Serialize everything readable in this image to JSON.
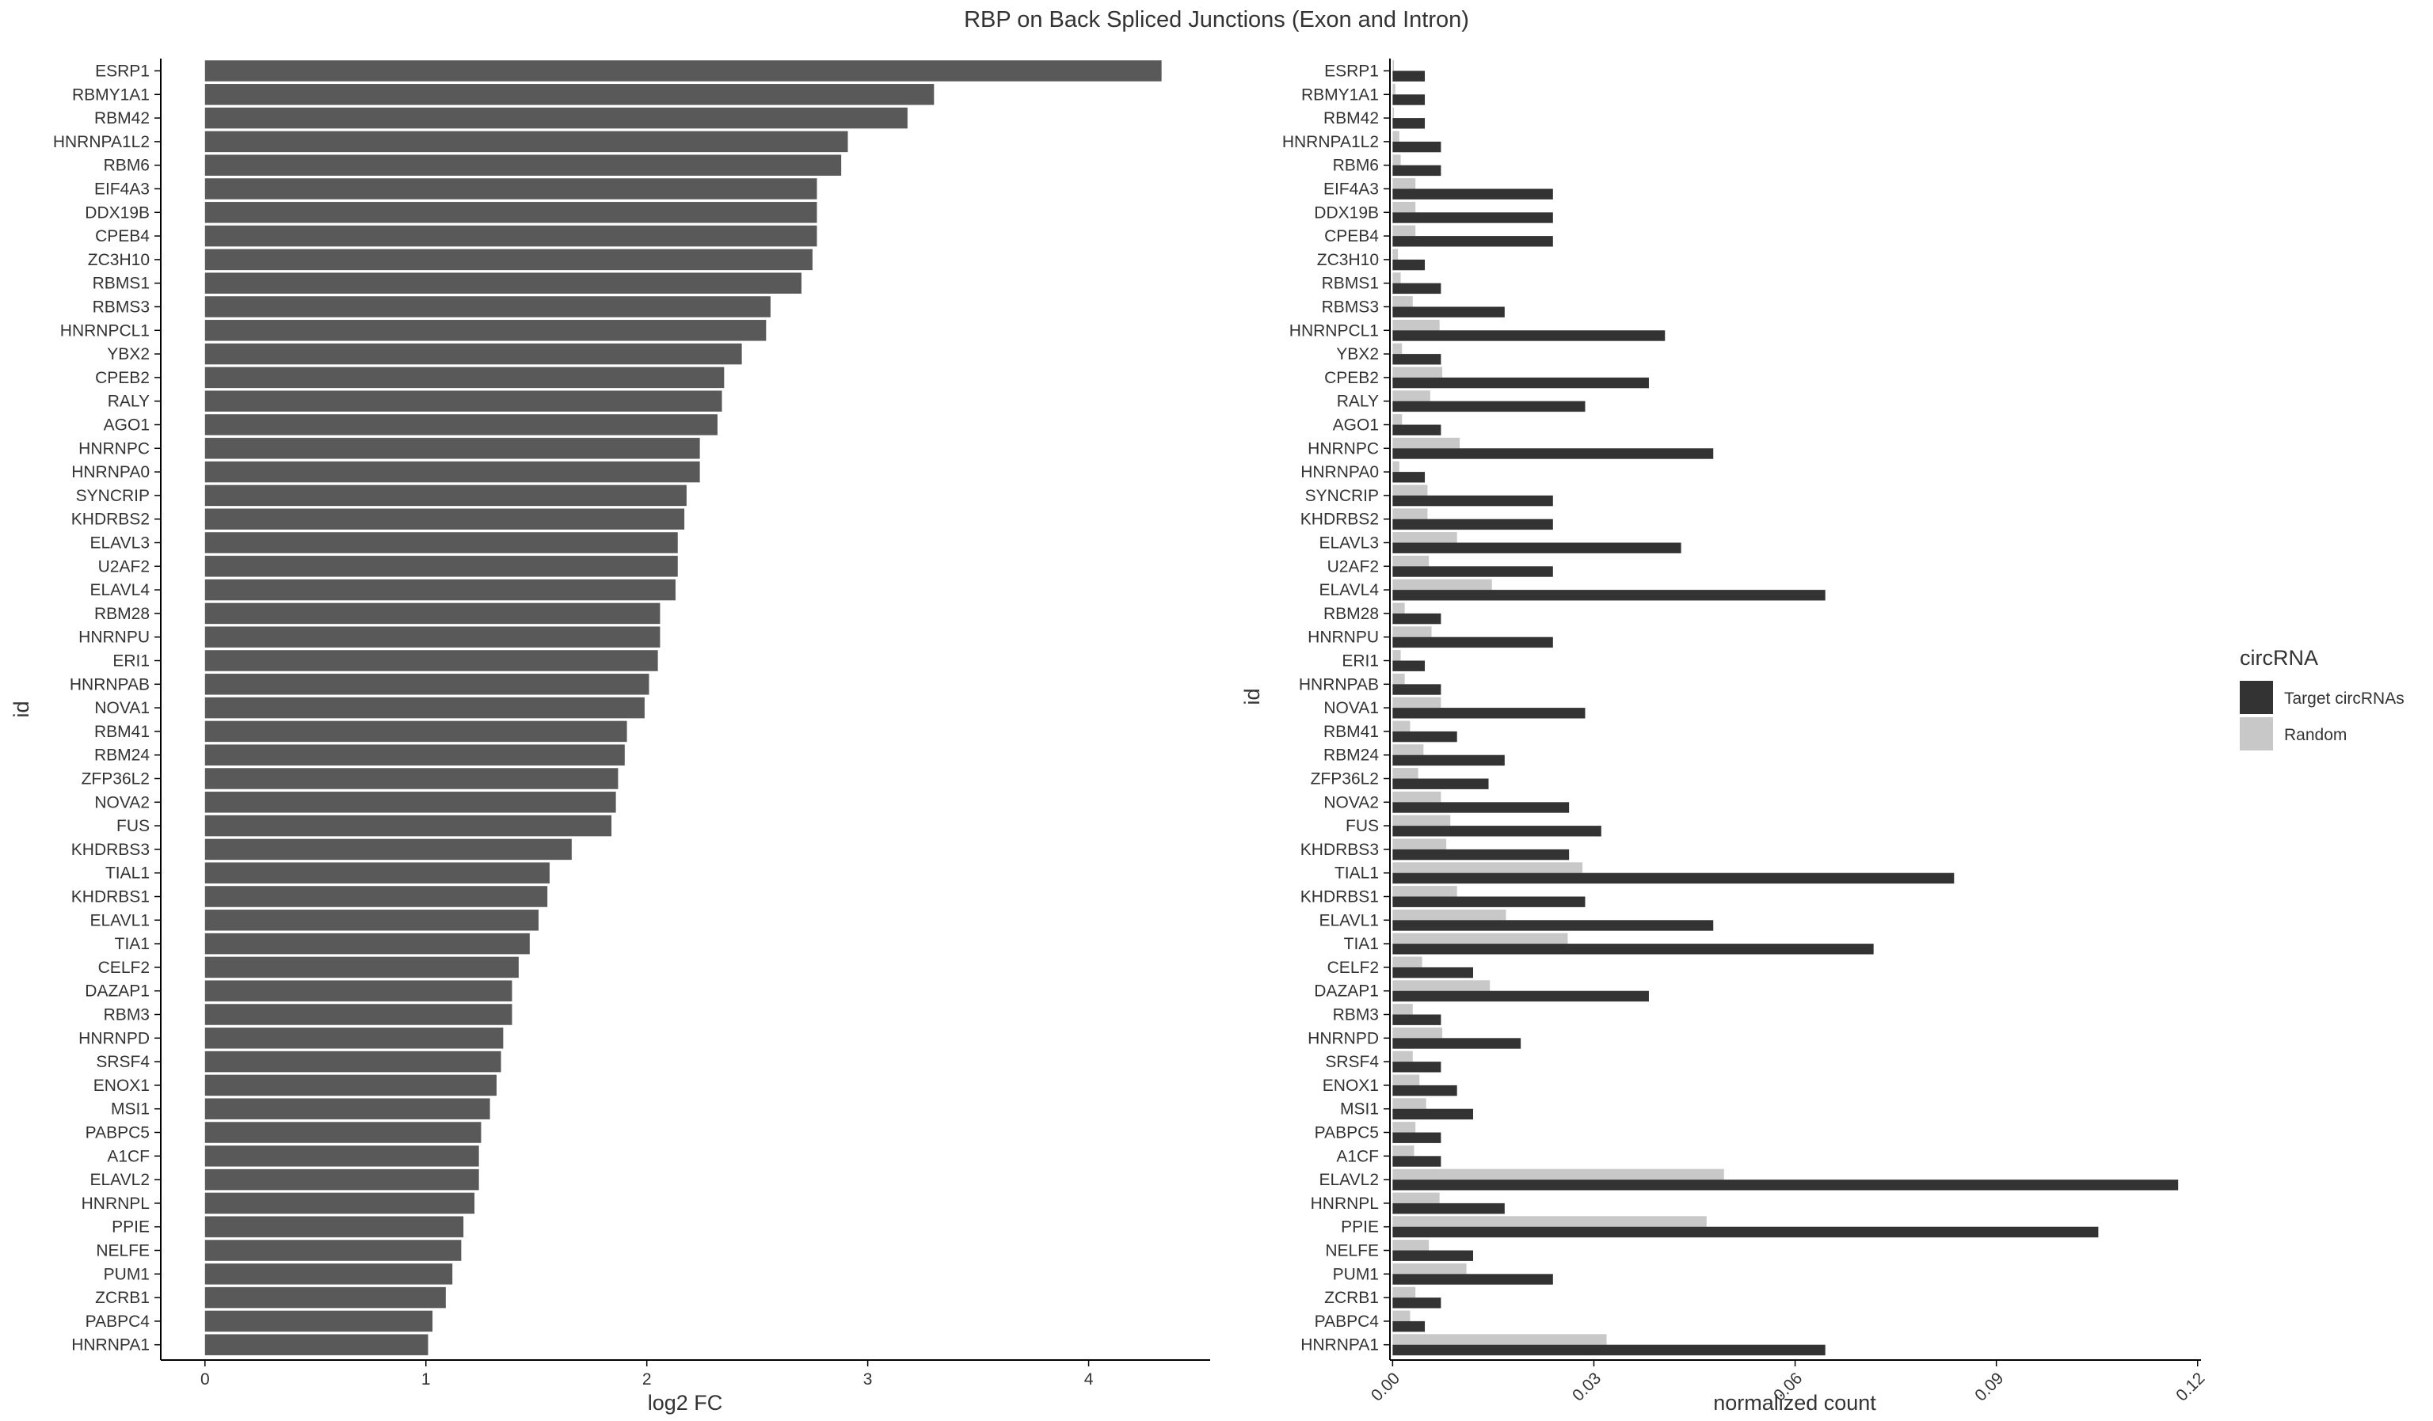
{
  "title": "RBP on Back Spliced Junctions (Exon and Intron)",
  "colors": {
    "left_bar": "#595959",
    "target": "#333333",
    "random": "#c8c8c8",
    "axis": "#000000",
    "text": "#333333"
  },
  "chart_data": [
    {
      "type": "bar",
      "orientation": "horizontal",
      "xlabel": "log2 FC",
      "ylabel": "id",
      "xlim": [
        -0.2,
        4.55
      ],
      "xticks": [
        0,
        1,
        2,
        3,
        4
      ],
      "grid": false,
      "categories": [
        "ESRP1",
        "RBMY1A1",
        "RBM42",
        "HNRNPA1L2",
        "RBM6",
        "EIF4A3",
        "DDX19B",
        "CPEB4",
        "ZC3H10",
        "RBMS1",
        "RBMS3",
        "HNRNPCL1",
        "YBX2",
        "CPEB2",
        "RALY",
        "AGO1",
        "HNRNPC",
        "HNRNPA0",
        "SYNCRIP",
        "KHDRBS2",
        "ELAVL3",
        "U2AF2",
        "ELAVL4",
        "RBM28",
        "HNRNPU",
        "ERI1",
        "HNRNPAB",
        "NOVA1",
        "RBM41",
        "RBM24",
        "ZFP36L2",
        "NOVA2",
        "FUS",
        "KHDRBS3",
        "TIAL1",
        "KHDRBS1",
        "ELAVL1",
        "TIA1",
        "CELF2",
        "DAZAP1",
        "RBM3",
        "HNRNPD",
        "SRSF4",
        "ENOX1",
        "MSI1",
        "PABPC5",
        "A1CF",
        "ELAVL2",
        "HNRNPL",
        "PPIE",
        "NELFE",
        "PUM1",
        "ZCRB1",
        "PABPC4",
        "HNRNPA1"
      ],
      "values": [
        4.33,
        3.3,
        3.18,
        2.91,
        2.88,
        2.77,
        2.77,
        2.77,
        2.75,
        2.7,
        2.56,
        2.54,
        2.43,
        2.35,
        2.34,
        2.32,
        2.24,
        2.24,
        2.18,
        2.17,
        2.14,
        2.14,
        2.13,
        2.06,
        2.06,
        2.05,
        2.01,
        1.99,
        1.91,
        1.9,
        1.87,
        1.86,
        1.84,
        1.66,
        1.56,
        1.55,
        1.51,
        1.47,
        1.42,
        1.39,
        1.39,
        1.35,
        1.34,
        1.32,
        1.29,
        1.25,
        1.24,
        1.24,
        1.22,
        1.17,
        1.16,
        1.12,
        1.09,
        1.03,
        1.01
      ]
    },
    {
      "type": "bar",
      "orientation": "horizontal",
      "grouped": true,
      "xlabel": "normalized count",
      "ylabel": "id",
      "xlim": [
        -0.0004,
        0.1205
      ],
      "xticks": [
        0.0,
        0.03,
        0.06,
        0.09,
        0.12
      ],
      "xtick_labels": [
        "0.00",
        "0.03",
        "0.06",
        "0.09",
        "0.12"
      ],
      "grid": false,
      "legend": {
        "title": "circRNA",
        "position": "right",
        "entries": [
          "Target circRNAs",
          "Random"
        ]
      },
      "categories": [
        "ESRP1",
        "RBMY1A1",
        "RBM42",
        "HNRNPA1L2",
        "RBM6",
        "EIF4A3",
        "DDX19B",
        "CPEB4",
        "ZC3H10",
        "RBMS1",
        "RBMS3",
        "HNRNPCL1",
        "YBX2",
        "CPEB2",
        "RALY",
        "AGO1",
        "HNRNPC",
        "HNRNPA0",
        "SYNCRIP",
        "KHDRBS2",
        "ELAVL3",
        "U2AF2",
        "ELAVL4",
        "RBM28",
        "HNRNPU",
        "ERI1",
        "HNRNPAB",
        "NOVA1",
        "RBM41",
        "RBM24",
        "ZFP36L2",
        "NOVA2",
        "FUS",
        "KHDRBS3",
        "TIAL1",
        "KHDRBS1",
        "ELAVL1",
        "TIA1",
        "CELF2",
        "DAZAP1",
        "RBM3",
        "HNRNPD",
        "SRSF4",
        "ENOX1",
        "MSI1",
        "PABPC5",
        "A1CF",
        "ELAVL2",
        "HNRNPL",
        "PPIE",
        "NELFE",
        "PUM1",
        "ZCRB1",
        "PABPC4",
        "HNRNPA1"
      ],
      "series": [
        {
          "name": "Target circRNAs",
          "values": [
            0.0048,
            0.0048,
            0.0048,
            0.0072,
            0.0072,
            0.0239,
            0.0239,
            0.0239,
            0.0048,
            0.0072,
            0.0167,
            0.0406,
            0.0072,
            0.0382,
            0.0287,
            0.0072,
            0.0478,
            0.0048,
            0.0239,
            0.0239,
            0.043,
            0.0239,
            0.0645,
            0.0072,
            0.0239,
            0.0048,
            0.0072,
            0.0287,
            0.0096,
            0.0167,
            0.0143,
            0.0263,
            0.0311,
            0.0263,
            0.0837,
            0.0287,
            0.0478,
            0.0717,
            0.012,
            0.0382,
            0.0072,
            0.0191,
            0.0072,
            0.0096,
            0.012,
            0.0072,
            0.0072,
            0.1171,
            0.0167,
            0.1052,
            0.012,
            0.0239,
            0.0072,
            0.0048,
            0.0645
          ]
        },
        {
          "name": "Random",
          "values": [
            0.0002,
            0.0004,
            0.0002,
            0.001,
            0.0012,
            0.0034,
            0.0034,
            0.0034,
            0.0008,
            0.0012,
            0.003,
            0.007,
            0.0014,
            0.0074,
            0.0056,
            0.0014,
            0.01,
            0.001,
            0.0052,
            0.0052,
            0.0096,
            0.0054,
            0.0148,
            0.0018,
            0.0058,
            0.0012,
            0.0018,
            0.0072,
            0.0026,
            0.0046,
            0.0038,
            0.0072,
            0.0086,
            0.008,
            0.0283,
            0.0096,
            0.0169,
            0.0261,
            0.0044,
            0.0145,
            0.003,
            0.0074,
            0.003,
            0.004,
            0.005,
            0.0034,
            0.0032,
            0.0494,
            0.007,
            0.0468,
            0.0054,
            0.011,
            0.0034,
            0.0026,
            0.0319
          ]
        }
      ]
    }
  ]
}
